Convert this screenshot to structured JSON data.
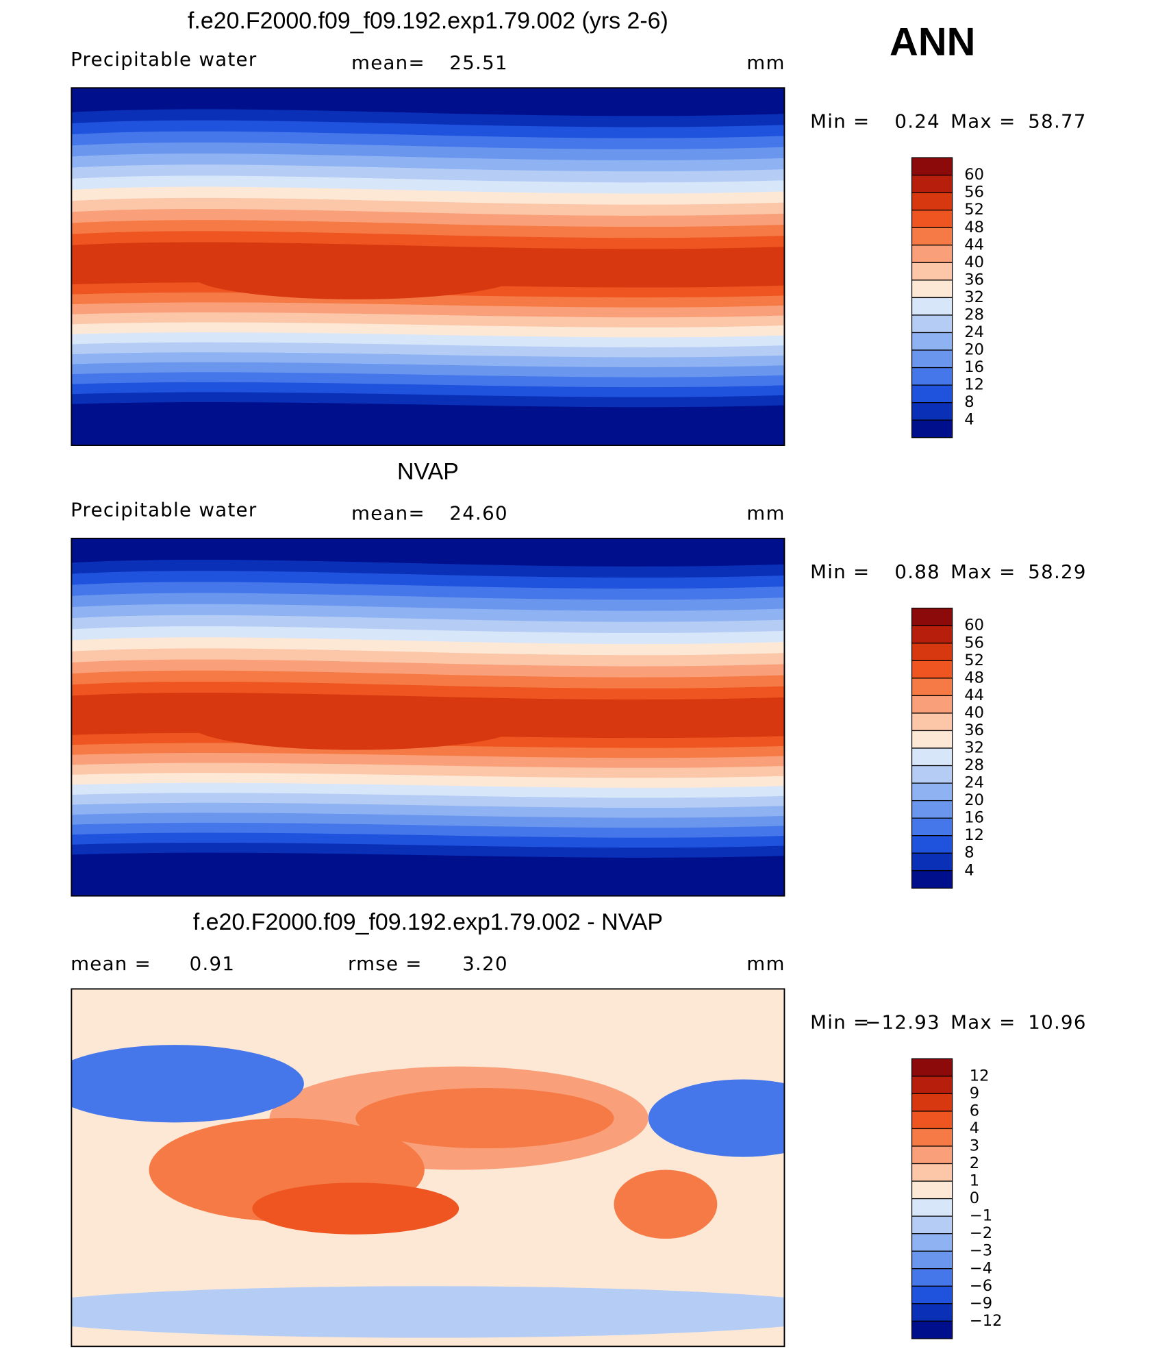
{
  "header": {
    "label": "ANN"
  },
  "panels": [
    {
      "title": "f.e20.F2000.f09_f09.192.exp1.79.002 (yrs 2-6)",
      "variable": "Precipitable water",
      "stats": [
        {
          "label": "mean=",
          "value": 25.51
        }
      ],
      "units": "mm",
      "min_label": "Min =",
      "min": 0.24,
      "max_label": "Max =",
      "max": 58.77,
      "colorbar": {
        "levels": [
          60,
          56,
          52,
          48,
          44,
          40,
          36,
          32,
          28,
          24,
          20,
          16,
          12,
          8,
          4
        ],
        "colors": [
          "#8c0a0a",
          "#b81e0c",
          "#d8380f",
          "#ee5520",
          "#f57a45",
          "#f9a07a",
          "#fcc6a8",
          "#fde8d6",
          "#d8e6fa",
          "#b5cdf5",
          "#8fb2f2",
          "#6a96ee",
          "#4577ea",
          "#1f52dd",
          "#0a30b8",
          "#00108c"
        ]
      }
    },
    {
      "title": "NVAP",
      "variable": "Precipitable water",
      "stats": [
        {
          "label": "mean=",
          "value": {
            "value": 24.6,
            "label": "24.60"
          }
        }
      ],
      "units": "mm",
      "min_label": "Min =",
      "min": 0.88,
      "max_label": "Max =",
      "max": 58.29,
      "colorbar": {
        "levels": [
          60,
          56,
          52,
          48,
          44,
          40,
          36,
          32,
          28,
          24,
          20,
          16,
          12,
          8,
          4
        ],
        "colors": [
          "#8c0a0a",
          "#b81e0c",
          "#d8380f",
          "#ee5520",
          "#f57a45",
          "#f9a07a",
          "#fcc6a8",
          "#fde8d6",
          "#d8e6fa",
          "#b5cdf5",
          "#8fb2f2",
          "#6a96ee",
          "#4577ea",
          "#1f52dd",
          "#0a30b8",
          "#00108c"
        ]
      }
    },
    {
      "title": "f.e20.F2000.f09_f09.192.exp1.79.002 - NVAP",
      "stats": [
        {
          "label": "mean =",
          "value": 0.91
        },
        {
          "label": "rmse =",
          "value": {
            "value": 3.2,
            "label": "3.20"
          }
        }
      ],
      "units": "mm",
      "min_label": "Min =",
      "min": {
        "value": -12.93,
        "label": "−12.93"
      },
      "max_label": "Max =",
      "max": 10.96,
      "colorbar": {
        "levels": [
          12,
          9,
          6,
          4,
          3,
          2,
          1,
          0,
          {
            "value": -1,
            "label": "−1"
          },
          {
            "value": -2,
            "label": "−2"
          },
          {
            "value": -3,
            "label": "−3"
          },
          {
            "value": -4,
            "label": "−4"
          },
          {
            "value": -6,
            "label": "−6"
          },
          {
            "value": -9,
            "label": "−9"
          },
          {
            "value": -12,
            "label": "−12"
          }
        ],
        "colors": [
          "#8c0a0a",
          "#b81e0c",
          "#d8380f",
          "#ee5520",
          "#f57a45",
          "#f9a07a",
          "#fcc6a8",
          "#fde8d6",
          "#d8e6fa",
          "#b5cdf5",
          "#8fb2f2",
          "#6a96ee",
          "#4577ea",
          "#1f52dd",
          "#0a30b8",
          "#00108c"
        ]
      }
    }
  ]
}
